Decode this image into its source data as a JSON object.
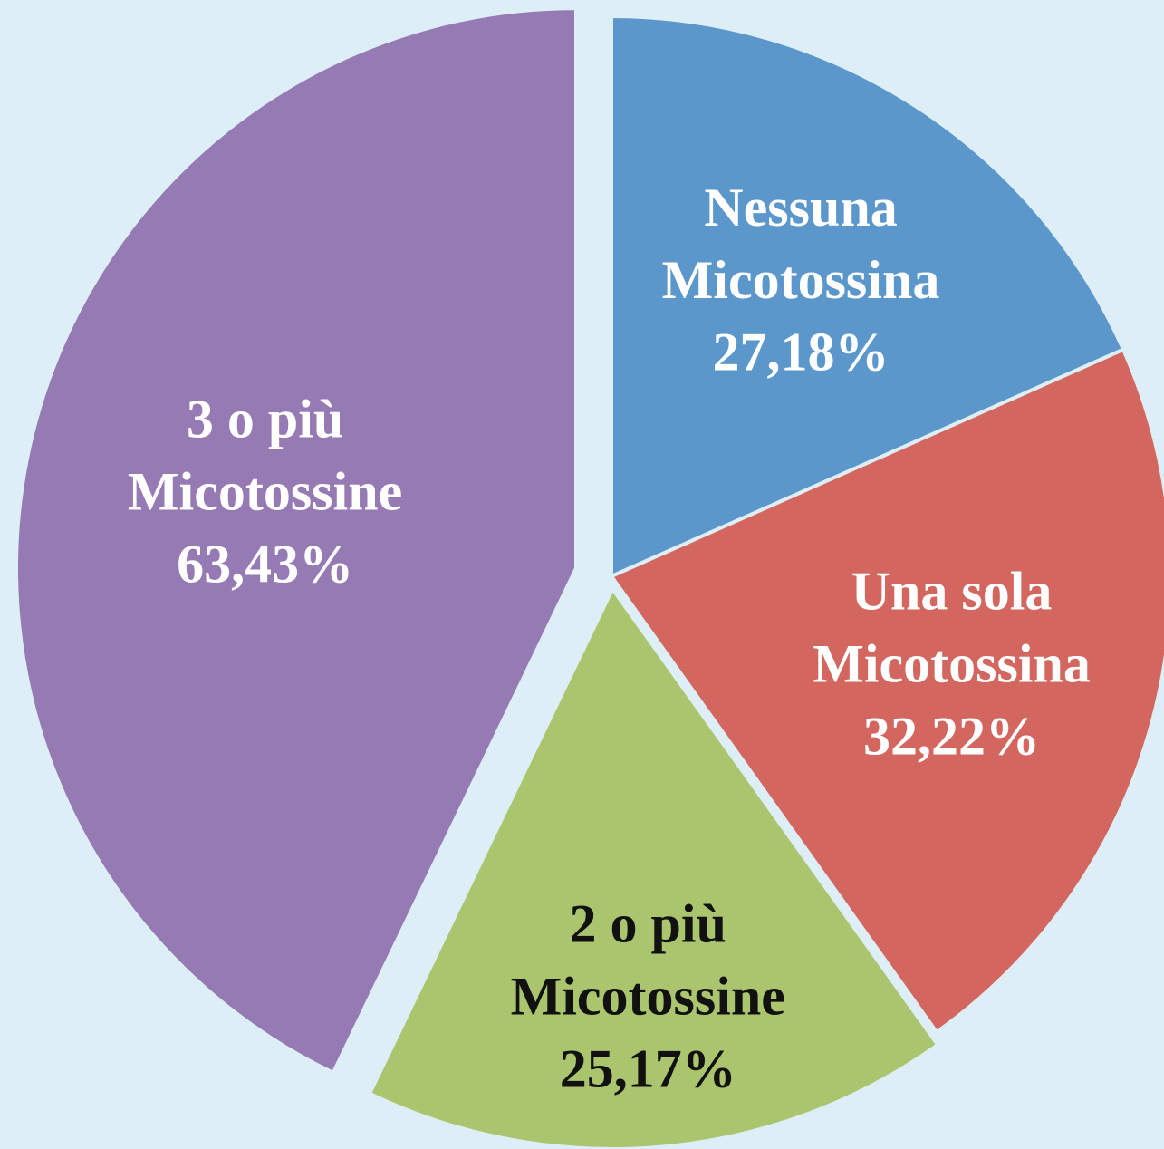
{
  "chart_data": {
    "type": "pie",
    "categories": [
      "Nessuna Micotossina",
      "Una sola Micotossina",
      "2 o più Micotossine",
      "3 o più Micotossine"
    ],
    "values": [
      27.18,
      32.22,
      25.17,
      63.43
    ],
    "value_labels": [
      "27,18%",
      "32,22%",
      "25,17%",
      "63,43%"
    ],
    "colors": [
      "#5b97ca",
      "#d3675f",
      "#abc46e",
      "#967ab3"
    ],
    "label_colors": [
      "#ffffff",
      "#ffffff",
      "#111111",
      "#ffffff"
    ]
  }
}
